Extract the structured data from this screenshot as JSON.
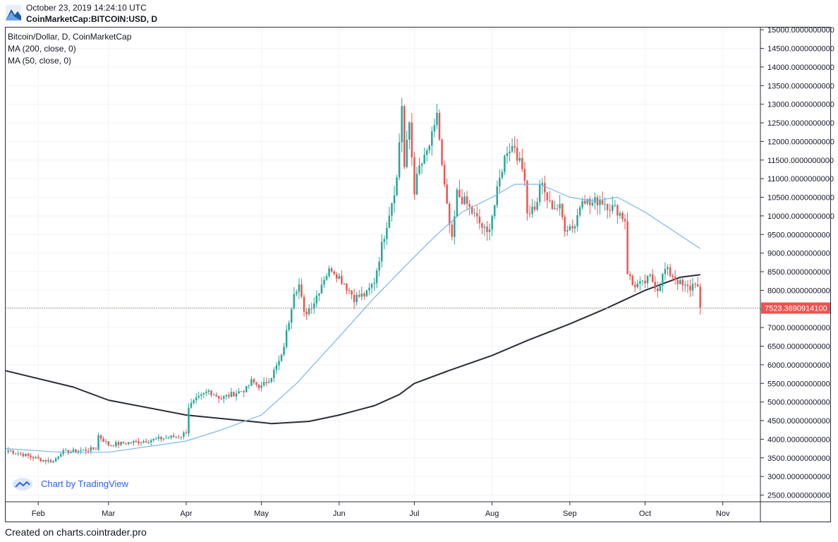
{
  "header": {
    "datetime": "October 23, 2019 14:24:10 UTC",
    "symbol": "CoinMarketCap:BITCOIN:USD, D"
  },
  "legend": {
    "main": "Bitcoin/Dollar, D, CoinMarketCap",
    "ma200": "MA (200, close, 0)",
    "ma50": "MA (50, close, 0)"
  },
  "watermark": "Chart by TradingView",
  "footer": "Created on charts.cointrader.pro",
  "colors": {
    "up": "#26a69a",
    "down": "#ef5350",
    "ma200": "#2a2e39",
    "ma50": "#7cb5ec",
    "price_label_bg": "#ef5350",
    "grid": "#f0f3fa"
  },
  "chart_data": {
    "type": "candlestick",
    "title": "Bitcoin/Dollar, D, CoinMarketCap",
    "x_range": [
      "2019-01-19",
      "2019-11-16"
    ],
    "y_range": [
      2320,
      15060
    ],
    "y_ticks": [
      "15000.0000000000",
      "14500.0000000000",
      "14000.0000000000",
      "13500.0000000000",
      "13000.0000000000",
      "12500.0000000000",
      "12000.0000000000",
      "11500.0000000000",
      "11000.0000000000",
      "10500.0000000000",
      "10000.0000000000",
      "9500.0000000000",
      "9000.0000000000",
      "8500.0000000000",
      "8000.0000000000",
      "7500.0000000000",
      "7000.0000000000",
      "6500.0000000000",
      "6000.0000000000",
      "5500.0000000000",
      "5000.0000000000",
      "4500.0000000000",
      "4000.0000000000",
      "3500.0000000000",
      "3000.0000000000",
      "2500.0000000000"
    ],
    "x_ticks": [
      {
        "label": "Feb",
        "date": "2019-02-01"
      },
      {
        "label": "Mar",
        "date": "2019-03-01"
      },
      {
        "label": "Apr",
        "date": "2019-04-01"
      },
      {
        "label": "May",
        "date": "2019-05-01"
      },
      {
        "label": "Jun",
        "date": "2019-06-01"
      },
      {
        "label": "Jul",
        "date": "2019-07-01"
      },
      {
        "label": "Aug",
        "date": "2019-08-01"
      },
      {
        "label": "Sep",
        "date": "2019-09-01"
      },
      {
        "label": "Oct",
        "date": "2019-10-01"
      },
      {
        "label": "Nov",
        "date": "2019-11-01"
      }
    ],
    "last_price": "7523.3690914100",
    "last_value": 7523.37,
    "price_anchors": [
      [
        "2019-01-20",
        3700
      ],
      [
        "2019-01-28",
        3550
      ],
      [
        "2019-02-02",
        3450
      ],
      [
        "2019-02-07",
        3400
      ],
      [
        "2019-02-10",
        3650
      ],
      [
        "2019-02-19",
        3700
      ],
      [
        "2019-02-24",
        3750
      ],
      [
        "2019-02-25",
        4100
      ],
      [
        "2019-03-01",
        3850
      ],
      [
        "2019-03-15",
        3950
      ],
      [
        "2019-03-30",
        4100
      ],
      [
        "2019-04-01",
        4200
      ],
      [
        "2019-04-02",
        4880
      ],
      [
        "2019-04-05",
        5050
      ],
      [
        "2019-04-10",
        5300
      ],
      [
        "2019-04-15",
        5100
      ],
      [
        "2019-04-25",
        5350
      ],
      [
        "2019-04-27",
        5550
      ],
      [
        "2019-05-01",
        5400
      ],
      [
        "2019-05-05",
        5700
      ],
      [
        "2019-05-09",
        6200
      ],
      [
        "2019-05-12",
        7200
      ],
      [
        "2019-05-14",
        8000
      ],
      [
        "2019-05-16",
        8150
      ],
      [
        "2019-05-18",
        7350
      ],
      [
        "2019-05-22",
        7700
      ],
      [
        "2019-05-26",
        8350
      ],
      [
        "2019-05-29",
        8600
      ],
      [
        "2019-06-03",
        8200
      ],
      [
        "2019-06-07",
        7800
      ],
      [
        "2019-06-12",
        7900
      ],
      [
        "2019-06-15",
        8250
      ],
      [
        "2019-06-18",
        9200
      ],
      [
        "2019-06-21",
        10100
      ],
      [
        "2019-06-24",
        11000
      ],
      [
        "2019-06-26",
        13000
      ],
      [
        "2019-06-27",
        11300
      ],
      [
        "2019-06-29",
        12500
      ],
      [
        "2019-07-01",
        10700
      ],
      [
        "2019-07-03",
        11300
      ],
      [
        "2019-07-05",
        11500
      ],
      [
        "2019-07-09",
        12300
      ],
      [
        "2019-07-10",
        12800
      ],
      [
        "2019-07-12",
        11300
      ],
      [
        "2019-07-14",
        10200
      ],
      [
        "2019-07-16",
        9300
      ],
      [
        "2019-07-18",
        10600
      ],
      [
        "2019-07-22",
        10300
      ],
      [
        "2019-07-27",
        9800
      ],
      [
        "2019-07-30",
        9500
      ],
      [
        "2019-08-02",
        10300
      ],
      [
        "2019-08-05",
        11300
      ],
      [
        "2019-08-07",
        11800
      ],
      [
        "2019-08-10",
        11900
      ],
      [
        "2019-08-12",
        11400
      ],
      [
        "2019-08-14",
        11100
      ],
      [
        "2019-08-15",
        10100
      ],
      [
        "2019-08-19",
        10300
      ],
      [
        "2019-08-20",
        10900
      ],
      [
        "2019-08-24",
        10300
      ],
      [
        "2019-08-28",
        10200
      ],
      [
        "2019-08-30",
        9700
      ],
      [
        "2019-09-03",
        9750
      ],
      [
        "2019-09-06",
        10550
      ],
      [
        "2019-09-09",
        10300
      ],
      [
        "2019-09-13",
        10450
      ],
      [
        "2019-09-17",
        10250
      ],
      [
        "2019-09-20",
        10150
      ],
      [
        "2019-09-23",
        9900
      ],
      [
        "2019-09-24",
        8500
      ],
      [
        "2019-09-26",
        8150
      ],
      [
        "2019-09-30",
        8150
      ],
      [
        "2019-10-03",
        8350
      ],
      [
        "2019-10-06",
        8050
      ],
      [
        "2019-10-09",
        8550
      ],
      [
        "2019-10-12",
        8400
      ],
      [
        "2019-10-16",
        8100
      ],
      [
        "2019-10-19",
        8050
      ],
      [
        "2019-10-21",
        8250
      ],
      [
        "2019-10-22",
        8050
      ],
      [
        "2019-10-23",
        7523
      ]
    ],
    "ma200": [
      [
        "2019-01-19",
        5840
      ],
      [
        "2019-02-15",
        5400
      ],
      [
        "2019-03-01",
        5050
      ],
      [
        "2019-04-01",
        4650
      ],
      [
        "2019-05-01",
        4450
      ],
      [
        "2019-05-05",
        4420
      ],
      [
        "2019-05-20",
        4480
      ],
      [
        "2019-06-01",
        4650
      ],
      [
        "2019-06-15",
        4900
      ],
      [
        "2019-06-25",
        5200
      ],
      [
        "2019-07-01",
        5500
      ],
      [
        "2019-07-15",
        5850
      ],
      [
        "2019-08-01",
        6250
      ],
      [
        "2019-08-15",
        6650
      ],
      [
        "2019-09-01",
        7100
      ],
      [
        "2019-09-15",
        7500
      ],
      [
        "2019-10-01",
        8000
      ],
      [
        "2019-10-15",
        8350
      ],
      [
        "2019-10-23",
        8420
      ]
    ],
    "ma50": [
      [
        "2019-01-19",
        3750
      ],
      [
        "2019-02-10",
        3650
      ],
      [
        "2019-03-01",
        3650
      ],
      [
        "2019-04-01",
        3950
      ],
      [
        "2019-04-15",
        4250
      ],
      [
        "2019-05-01",
        4650
      ],
      [
        "2019-05-15",
        5500
      ],
      [
        "2019-06-01",
        6750
      ],
      [
        "2019-06-15",
        7800
      ],
      [
        "2019-07-01",
        8900
      ],
      [
        "2019-07-10",
        9500
      ],
      [
        "2019-07-20",
        10100
      ],
      [
        "2019-08-01",
        10500
      ],
      [
        "2019-08-10",
        10850
      ],
      [
        "2019-08-20",
        10850
      ],
      [
        "2019-09-01",
        10500
      ],
      [
        "2019-09-10",
        10400
      ],
      [
        "2019-09-20",
        10500
      ],
      [
        "2019-10-01",
        10100
      ],
      [
        "2019-10-10",
        9700
      ],
      [
        "2019-10-23",
        9120
      ]
    ]
  }
}
